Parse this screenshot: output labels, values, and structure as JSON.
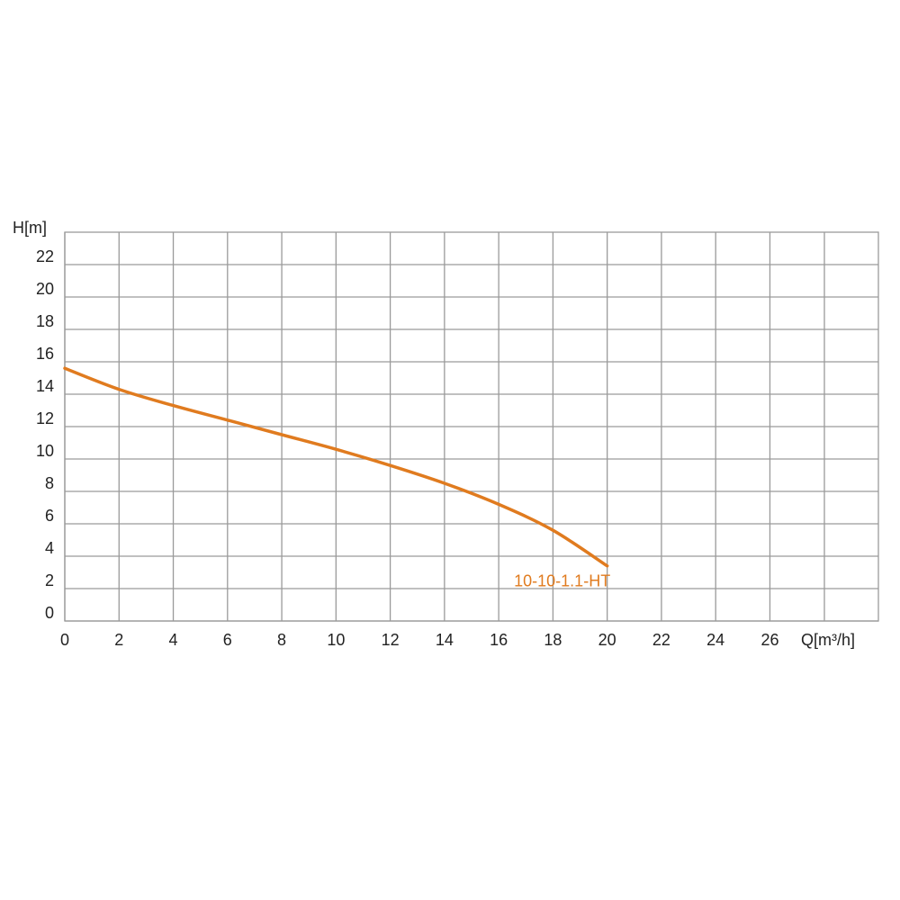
{
  "chart_data": {
    "type": "line",
    "x_label": "Q[m³/h]",
    "y_label": "H[m]",
    "x": [
      0,
      2,
      4,
      6,
      8,
      10,
      12,
      14,
      16,
      18,
      20
    ],
    "series": [
      {
        "name": "10-10-1.1-HT",
        "color": "#e07b1f",
        "values": [
          15.6,
          14.3,
          13.3,
          12.4,
          11.5,
          10.6,
          9.6,
          8.5,
          7.2,
          5.6,
          3.4
        ]
      }
    ],
    "xlim": [
      0,
      30
    ],
    "xticks": [
      0,
      2,
      4,
      6,
      8,
      10,
      12,
      14,
      16,
      18,
      20,
      22,
      24,
      26
    ],
    "ylim": [
      0,
      24
    ],
    "yticks": [
      0,
      2,
      4,
      6,
      8,
      10,
      12,
      14,
      16,
      18,
      20,
      22
    ],
    "grid": true
  }
}
